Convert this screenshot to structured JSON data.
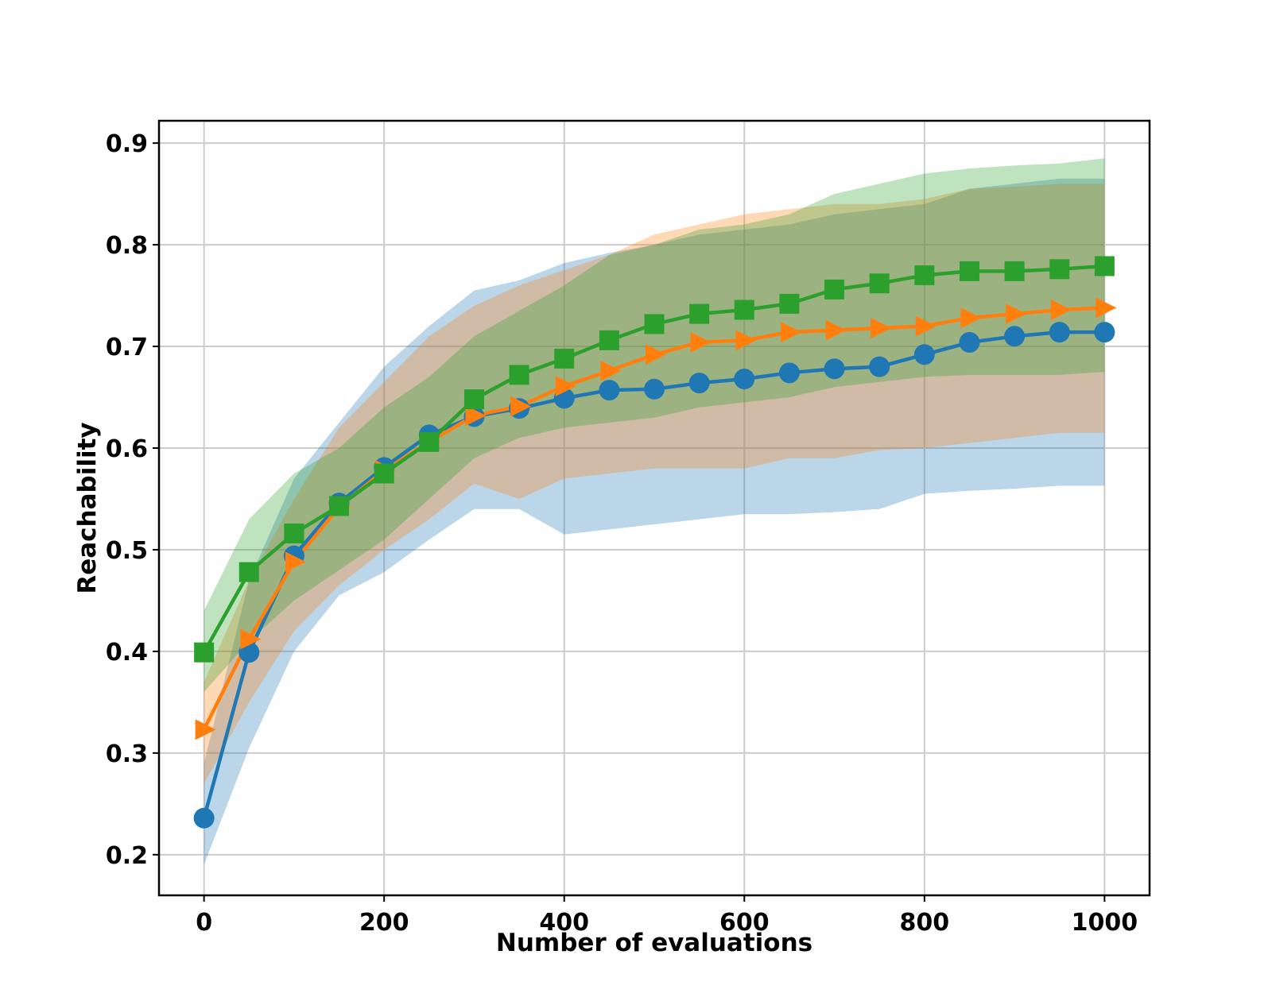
{
  "chart_data": {
    "type": "line",
    "title": "",
    "xlabel": "Number of evaluations",
    "ylabel": "Reachability",
    "xlim": [
      -50,
      1050
    ],
    "ylim": [
      0.16,
      0.922
    ],
    "xticks": [
      0,
      200,
      400,
      600,
      800,
      1000
    ],
    "xtick_labels": [
      "0",
      "200",
      "400",
      "600",
      "800",
      "1000"
    ],
    "yticks": [
      0.2,
      0.3,
      0.4,
      0.5,
      0.6,
      0.7,
      0.8,
      0.9
    ],
    "ytick_labels": [
      "0.2",
      "0.3",
      "0.4",
      "0.5",
      "0.6",
      "0.7",
      "0.8",
      "0.9"
    ],
    "grid": true,
    "x": [
      0,
      50,
      100,
      150,
      200,
      250,
      300,
      350,
      400,
      450,
      500,
      550,
      600,
      650,
      700,
      750,
      800,
      850,
      900,
      950,
      1000
    ],
    "series": [
      {
        "name": "blue",
        "color": "#1f77b4",
        "marker": "circle",
        "values": [
          0.236,
          0.399,
          0.494,
          0.546,
          0.581,
          0.613,
          0.631,
          0.639,
          0.649,
          0.657,
          0.658,
          0.664,
          0.668,
          0.674,
          0.678,
          0.68,
          0.692,
          0.704,
          0.71,
          0.714,
          0.714
        ],
        "band_low": [
          0.19,
          0.305,
          0.4,
          0.455,
          0.478,
          0.51,
          0.54,
          0.54,
          0.515,
          0.52,
          0.525,
          0.53,
          0.535,
          0.535,
          0.537,
          0.54,
          0.555,
          0.558,
          0.56,
          0.563,
          0.563
        ],
        "band_high": [
          0.29,
          0.47,
          0.57,
          0.625,
          0.68,
          0.72,
          0.755,
          0.765,
          0.782,
          0.792,
          0.8,
          0.81,
          0.815,
          0.82,
          0.83,
          0.835,
          0.84,
          0.855,
          0.86,
          0.865,
          0.865
        ]
      },
      {
        "name": "orange",
        "color": "#ff7f0e",
        "marker": "triangle-right",
        "values": [
          0.323,
          0.412,
          0.488,
          0.542,
          0.578,
          0.606,
          0.632,
          0.641,
          0.661,
          0.676,
          0.692,
          0.704,
          0.706,
          0.714,
          0.716,
          0.718,
          0.72,
          0.728,
          0.732,
          0.736,
          0.738
        ],
        "band_low": [
          0.27,
          0.35,
          0.42,
          0.465,
          0.5,
          0.53,
          0.565,
          0.55,
          0.57,
          0.575,
          0.58,
          0.58,
          0.58,
          0.59,
          0.59,
          0.598,
          0.6,
          0.605,
          0.61,
          0.615,
          0.615
        ],
        "band_high": [
          0.37,
          0.47,
          0.55,
          0.62,
          0.665,
          0.71,
          0.74,
          0.76,
          0.775,
          0.79,
          0.81,
          0.82,
          0.83,
          0.835,
          0.84,
          0.84,
          0.845,
          0.855,
          0.857,
          0.86,
          0.86
        ]
      },
      {
        "name": "green",
        "color": "#2ca02c",
        "marker": "square",
        "values": [
          0.399,
          0.478,
          0.516,
          0.543,
          0.575,
          0.606,
          0.648,
          0.672,
          0.688,
          0.706,
          0.722,
          0.732,
          0.736,
          0.742,
          0.756,
          0.762,
          0.77,
          0.774,
          0.774,
          0.776,
          0.779
        ],
        "band_low": [
          0.36,
          0.41,
          0.45,
          0.48,
          0.51,
          0.55,
          0.59,
          0.61,
          0.62,
          0.625,
          0.63,
          0.64,
          0.645,
          0.65,
          0.66,
          0.665,
          0.67,
          0.672,
          0.672,
          0.672,
          0.675
        ],
        "band_high": [
          0.44,
          0.53,
          0.575,
          0.6,
          0.64,
          0.67,
          0.71,
          0.735,
          0.76,
          0.79,
          0.8,
          0.815,
          0.82,
          0.83,
          0.85,
          0.86,
          0.87,
          0.875,
          0.878,
          0.88,
          0.885
        ]
      }
    ]
  }
}
